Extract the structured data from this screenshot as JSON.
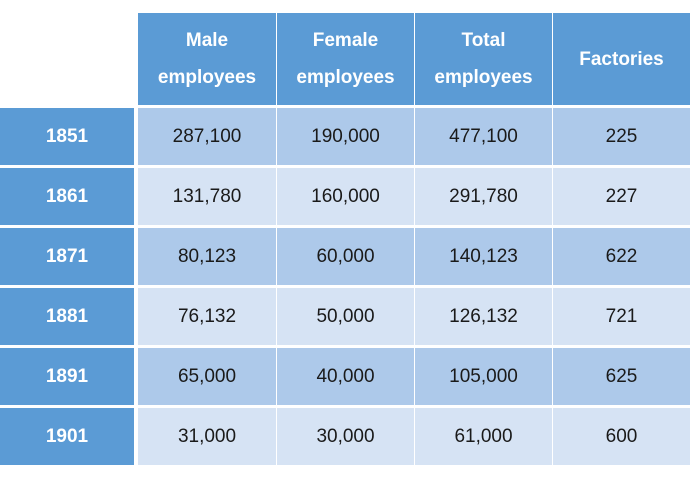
{
  "chart_data": {
    "type": "table",
    "columns": [
      "Male employees",
      "Female employees",
      "Total employees",
      "Factories"
    ],
    "column_header_lines": [
      [
        "Male",
        "employees"
      ],
      [
        "Female",
        "employees"
      ],
      [
        "Total",
        "employees"
      ],
      [
        "Factories"
      ]
    ],
    "rows": [
      {
        "year": "1851",
        "values": [
          "287,100",
          "190,000",
          "477,100",
          "225"
        ]
      },
      {
        "year": "1861",
        "values": [
          "131,780",
          "160,000",
          "291,780",
          "227"
        ]
      },
      {
        "year": "1871",
        "values": [
          "80,123",
          "60,000",
          "140,123",
          "622"
        ]
      },
      {
        "year": "1881",
        "values": [
          "76,132",
          "50,000",
          "126,132",
          "721"
        ]
      },
      {
        "year": "1891",
        "values": [
          "65,000",
          "40,000",
          "105,000",
          "625"
        ]
      },
      {
        "year": "1901",
        "values": [
          "31,000",
          "30,000",
          "61,000",
          "600"
        ]
      }
    ],
    "colors": {
      "header": "#5b9bd5",
      "row_dark": "#adc9ea",
      "row_light": "#d6e3f4"
    }
  }
}
